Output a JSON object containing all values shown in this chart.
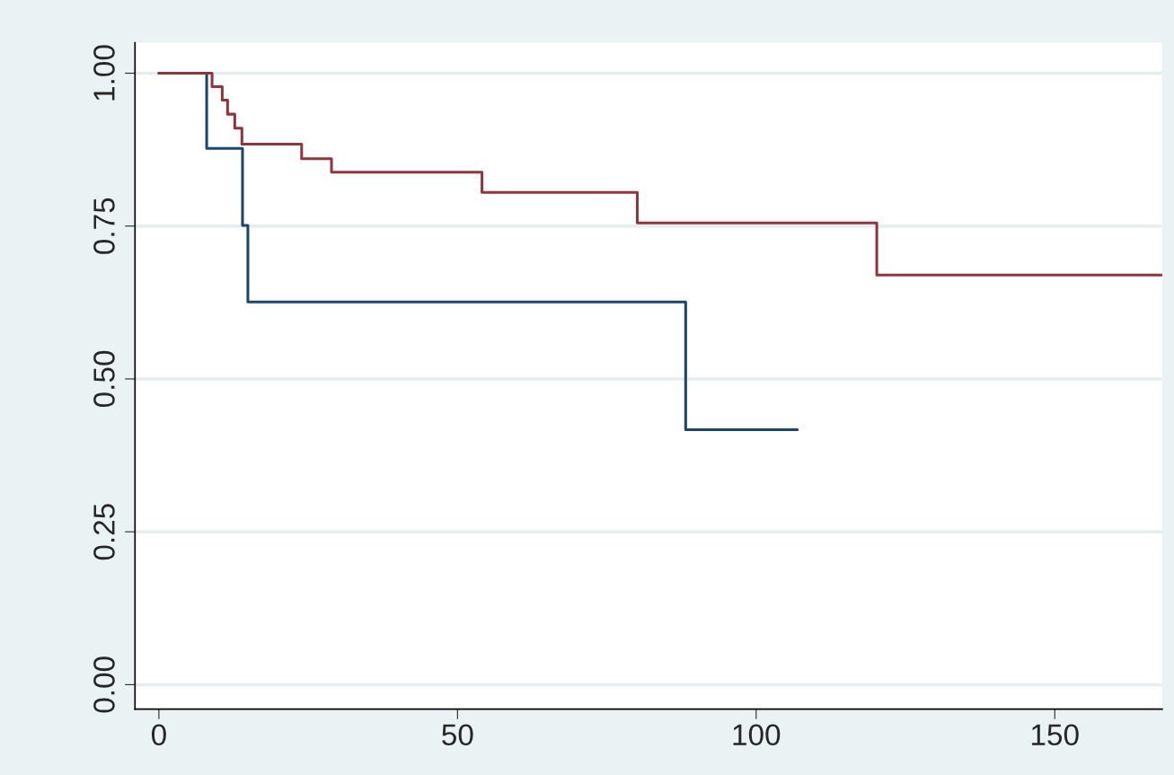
{
  "chart_data": {
    "type": "step",
    "series": [
      {
        "color": "#1a476f",
        "x": [
          0,
          8,
          14,
          14.9,
          88.2,
          106.9
        ],
        "values": [
          1.0,
          0.877,
          0.751,
          0.626,
          0.417,
          0.417
        ]
      },
      {
        "color": "#90353b",
        "x": [
          0,
          8.9,
          10.6,
          11.5,
          12.7,
          13.9,
          23.9,
          28.9,
          54.1,
          80.1,
          120.2,
          168
        ],
        "values": [
          1.0,
          0.978,
          0.956,
          0.933,
          0.91,
          0.884,
          0.86,
          0.838,
          0.805,
          0.755,
          0.67,
          0.67
        ]
      }
    ],
    "xlim": [
      -4,
      168
    ],
    "ylim": [
      -0.04,
      1.05
    ],
    "xticks": [
      0,
      50,
      100,
      150
    ],
    "yticks": [
      {
        "value": 0,
        "label": "0.00"
      },
      {
        "value": 0.25,
        "label": "0.25"
      },
      {
        "value": 0.5,
        "label": "0.50"
      },
      {
        "value": 0.75,
        "label": "0.75"
      },
      {
        "value": 1,
        "label": "1.00"
      }
    ],
    "grid": "y",
    "marker": "none",
    "line_style": "solid"
  }
}
